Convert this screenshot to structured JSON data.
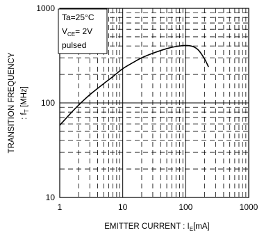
{
  "chart_data": {
    "type": "line",
    "xlabel": "EMITTER CURRENT : I_E [mA]",
    "xlabel_main": "EMITTER CURRENT : I",
    "xlabel_sub": "E",
    "xlabel_unit": "[mA]",
    "ylabel_line1": "TRANSITION FREQUENCY",
    "ylabel_line2_main": ": f",
    "ylabel_line2_sub": "T",
    "ylabel_line2_unit": " [MHz]",
    "x_scale": "log",
    "y_scale": "log",
    "xlim": [
      1,
      1000
    ],
    "ylim": [
      10,
      1000
    ],
    "x_ticks": [
      1,
      10,
      100,
      1000
    ],
    "x_tick_labels": [
      "1",
      "10",
      "100",
      "1000"
    ],
    "y_ticks": [
      10,
      100,
      1000
    ],
    "y_tick_labels": [
      "10",
      "100",
      "1000"
    ],
    "grid": "dashed minor, solid major",
    "annotation": {
      "line1": "Ta=25°C",
      "line2_main": "V",
      "line2_sub": "CE",
      "line2_rest": "= 2V",
      "line3": "pulsed",
      "position": "top-left"
    },
    "series": [
      {
        "x": [
          1,
          1.5,
          2,
          3,
          5,
          7,
          10,
          15,
          20,
          30,
          50,
          70,
          100,
          130,
          160,
          200,
          230
        ],
        "y": [
          58,
          78,
          95,
          122,
          160,
          190,
          230,
          270,
          300,
          335,
          375,
          395,
          405,
          395,
          360,
          290,
          240
        ]
      }
    ]
  }
}
